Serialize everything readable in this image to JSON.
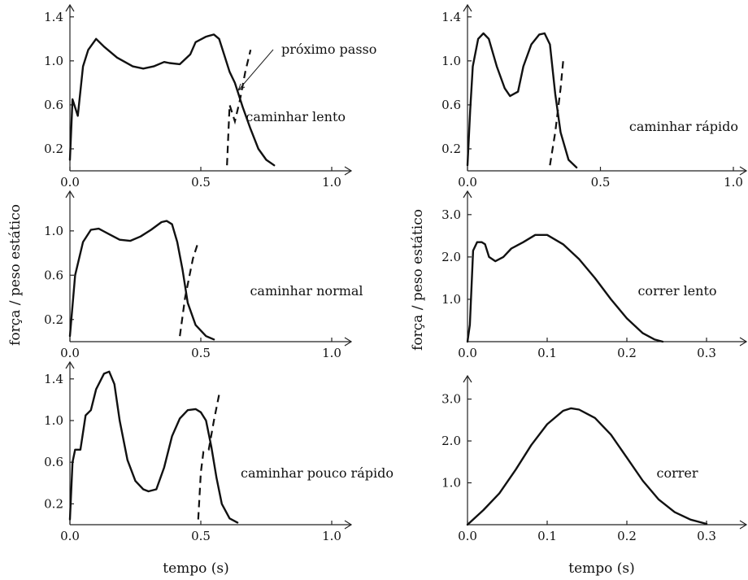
{
  "chart_data": [
    {
      "type": "line",
      "annotation": "caminhar lento",
      "xlim": [
        0,
        1.0
      ],
      "ylim": [
        0,
        1.45
      ],
      "xticks": [
        0.0,
        0.5,
        1.0
      ],
      "yticks": [
        0.2,
        0.6,
        1.0,
        1.4
      ],
      "series": [
        {
          "x": [
            0,
            0.01,
            0.03,
            0.05,
            0.07,
            0.1,
            0.13,
            0.18,
            0.24,
            0.28,
            0.32,
            0.36,
            0.38,
            0.42,
            0.46,
            0.48,
            0.52,
            0.55,
            0.57,
            0.59,
            0.61,
            0.63,
            0.66,
            0.69,
            0.72,
            0.75,
            0.78
          ],
          "y": [
            0.1,
            0.65,
            0.5,
            0.95,
            1.1,
            1.2,
            1.13,
            1.03,
            0.95,
            0.93,
            0.95,
            0.99,
            0.98,
            0.97,
            1.06,
            1.17,
            1.22,
            1.24,
            1.2,
            1.05,
            0.9,
            0.8,
            0.58,
            0.38,
            0.2,
            0.1,
            0.05
          ]
        },
        {
          "style": "dashed",
          "x": [
            0.6,
            0.61,
            0.63,
            0.65,
            0.67,
            0.69
          ],
          "y": [
            0.05,
            0.6,
            0.45,
            0.65,
            0.9,
            1.1
          ]
        }
      ],
      "callout": "próximo passo"
    },
    {
      "type": "line",
      "annotation": "caminhar rápido",
      "xlim": [
        0,
        1.0
      ],
      "ylim": [
        0,
        1.45
      ],
      "xticks": [
        0.0,
        0.5,
        1.0
      ],
      "yticks": [
        0.2,
        0.6,
        1.0,
        1.4
      ],
      "series": [
        {
          "x": [
            0,
            0.01,
            0.02,
            0.04,
            0.06,
            0.08,
            0.11,
            0.14,
            0.16,
            0.19,
            0.21,
            0.24,
            0.27,
            0.29,
            0.31,
            0.33,
            0.35,
            0.38,
            0.41
          ],
          "y": [
            0.05,
            0.55,
            0.95,
            1.2,
            1.25,
            1.2,
            0.95,
            0.75,
            0.68,
            0.72,
            0.95,
            1.15,
            1.24,
            1.25,
            1.15,
            0.7,
            0.35,
            0.1,
            0.03
          ]
        },
        {
          "style": "dashed",
          "x": [
            0.31,
            0.33,
            0.35,
            0.36
          ],
          "y": [
            0.05,
            0.35,
            0.75,
            1.0
          ]
        }
      ]
    },
    {
      "type": "line",
      "annotation": "caminhar normal",
      "xlim": [
        0,
        1.0
      ],
      "ylim": [
        0,
        1.3
      ],
      "xticks": [
        0.0,
        0.5,
        1.0
      ],
      "yticks": [
        0.2,
        0.6,
        1.0
      ],
      "series": [
        {
          "x": [
            0,
            0.02,
            0.05,
            0.08,
            0.11,
            0.15,
            0.19,
            0.23,
            0.27,
            0.31,
            0.35,
            0.37,
            0.39,
            0.41,
            0.43,
            0.45,
            0.48,
            0.52,
            0.55
          ],
          "y": [
            0.05,
            0.6,
            0.9,
            1.01,
            1.02,
            0.97,
            0.92,
            0.91,
            0.95,
            1.01,
            1.08,
            1.09,
            1.06,
            0.9,
            0.65,
            0.35,
            0.15,
            0.05,
            0.02
          ]
        },
        {
          "style": "dashed",
          "x": [
            0.42,
            0.44,
            0.47,
            0.49
          ],
          "y": [
            0.05,
            0.4,
            0.75,
            0.9
          ]
        }
      ]
    },
    {
      "type": "line",
      "annotation": "correr lento",
      "xlim": [
        0,
        0.35
      ],
      "ylim": [
        0,
        3.4
      ],
      "xticks": [
        0.0,
        0.1,
        0.2,
        0.3
      ],
      "yticks": [
        1.0,
        2.0,
        3.0
      ],
      "series": [
        {
          "x": [
            0,
            0.003,
            0.007,
            0.012,
            0.018,
            0.022,
            0.027,
            0.035,
            0.045,
            0.055,
            0.07,
            0.085,
            0.1,
            0.12,
            0.14,
            0.16,
            0.18,
            0.2,
            0.22,
            0.235,
            0.245
          ],
          "y": [
            0.0,
            0.4,
            2.15,
            2.35,
            2.35,
            2.3,
            2.0,
            1.9,
            2.0,
            2.2,
            2.35,
            2.52,
            2.52,
            2.3,
            1.95,
            1.5,
            1.0,
            0.55,
            0.2,
            0.05,
            0.0
          ]
        }
      ]
    },
    {
      "type": "line",
      "annotation": "caminhar pouco rápido",
      "xlim": [
        0,
        1.0
      ],
      "ylim": [
        0,
        1.5
      ],
      "xticks": [
        0.0,
        0.5,
        1.0
      ],
      "yticks": [
        0.2,
        0.6,
        1.0,
        1.4
      ],
      "series": [
        {
          "x": [
            0,
            0.01,
            0.02,
            0.04,
            0.06,
            0.08,
            0.1,
            0.13,
            0.15,
            0.17,
            0.19,
            0.22,
            0.25,
            0.28,
            0.3,
            0.33,
            0.36,
            0.39,
            0.42,
            0.45,
            0.48,
            0.5,
            0.52,
            0.54,
            0.56,
            0.58,
            0.61,
            0.64
          ],
          "y": [
            0.05,
            0.6,
            0.72,
            0.72,
            1.05,
            1.1,
            1.3,
            1.45,
            1.47,
            1.35,
            1.0,
            0.62,
            0.42,
            0.34,
            0.32,
            0.34,
            0.55,
            0.85,
            1.02,
            1.1,
            1.11,
            1.08,
            1.0,
            0.75,
            0.45,
            0.2,
            0.06,
            0.02
          ]
        },
        {
          "style": "dashed",
          "x": [
            0.49,
            0.5,
            0.51,
            0.53,
            0.55,
            0.57
          ],
          "y": [
            0.05,
            0.5,
            0.7,
            0.72,
            1.0,
            1.25
          ]
        }
      ]
    },
    {
      "type": "line",
      "annotation": "correr",
      "xlim": [
        0,
        0.35
      ],
      "ylim": [
        0,
        3.4
      ],
      "xticks": [
        0.0,
        0.1,
        0.2,
        0.3
      ],
      "yticks": [
        1.0,
        2.0,
        3.0
      ],
      "series": [
        {
          "x": [
            0,
            0.02,
            0.04,
            0.06,
            0.08,
            0.1,
            0.12,
            0.13,
            0.14,
            0.16,
            0.18,
            0.2,
            0.22,
            0.24,
            0.26,
            0.28,
            0.3
          ],
          "y": [
            0.0,
            0.35,
            0.75,
            1.3,
            1.9,
            2.4,
            2.72,
            2.78,
            2.75,
            2.55,
            2.15,
            1.6,
            1.05,
            0.6,
            0.3,
            0.12,
            0.02
          ]
        }
      ]
    }
  ],
  "labels": {
    "ylabel_left": "força / peso estático",
    "ylabel_right": "força / peso estático",
    "xlabel_left": "tempo (s)",
    "xlabel_right": "tempo (s)"
  }
}
